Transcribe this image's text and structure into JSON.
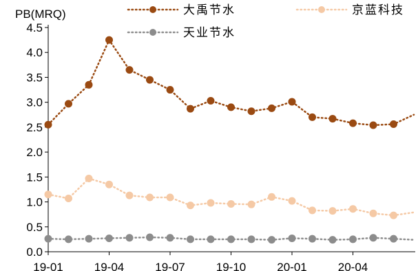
{
  "chart_data": {
    "type": "line",
    "ylabel": "PB(MRQ)",
    "ylim": [
      0,
      4.5
    ],
    "yticks": [
      "0.0",
      "0.5",
      "1.0",
      "1.5",
      "2.0",
      "2.5",
      "3.0",
      "3.5",
      "4.0",
      "4.5"
    ],
    "xticks": [
      "19-01",
      "19-04",
      "19-07",
      "19-10",
      "20-01",
      "20-04"
    ],
    "x": [
      "19-01",
      "19-02",
      "19-03",
      "19-04",
      "19-05",
      "19-06",
      "19-07",
      "19-08",
      "19-09",
      "19-10",
      "19-11",
      "19-12",
      "20-01",
      "20-02",
      "20-03",
      "20-04",
      "20-05",
      "20-06",
      "20-07"
    ],
    "grid": false,
    "legend_position": "top",
    "series": [
      {
        "name": "大禹节水",
        "color": "#9a4a12",
        "line_style": "dotted",
        "values": [
          2.55,
          2.97,
          3.35,
          4.25,
          3.65,
          3.45,
          3.25,
          2.87,
          3.03,
          2.9,
          2.82,
          2.88,
          3.01,
          2.7,
          2.67,
          2.58,
          2.54,
          2.56,
          2.75
        ]
      },
      {
        "name": "京蓝科技",
        "color": "#f5c9a5",
        "line_style": "dotted",
        "values": [
          1.15,
          1.07,
          1.47,
          1.35,
          1.13,
          1.09,
          1.09,
          0.93,
          0.98,
          0.96,
          0.95,
          1.1,
          1.02,
          0.83,
          0.82,
          0.86,
          0.77,
          0.73,
          0.79
        ]
      },
      {
        "name": "天业节水",
        "color": "#8c8c8c",
        "line_style": "dotted",
        "values": [
          0.26,
          0.25,
          0.26,
          0.27,
          0.28,
          0.29,
          0.28,
          0.25,
          0.25,
          0.25,
          0.25,
          0.24,
          0.27,
          0.26,
          0.24,
          0.25,
          0.28,
          0.26,
          0.24
        ]
      }
    ]
  }
}
